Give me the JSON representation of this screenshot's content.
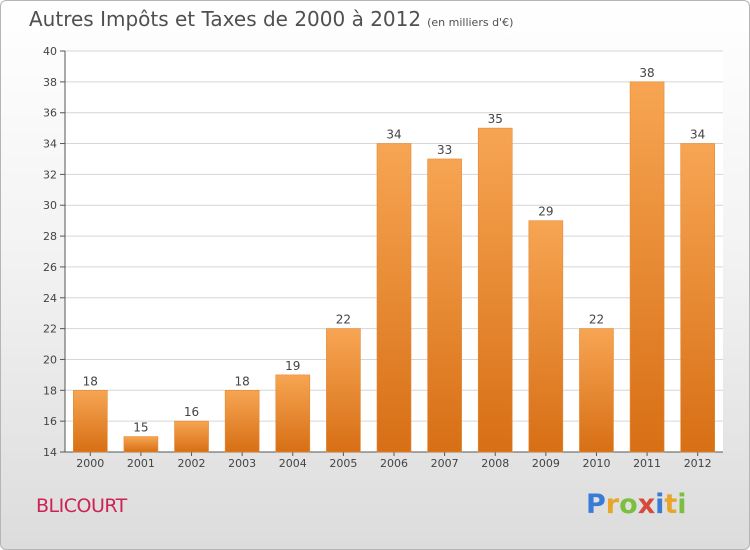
{
  "header": {
    "title": "Autres Impôts et Taxes de 2000 à 2012",
    "subtitle": "(en milliers d'€)"
  },
  "footer": {
    "town": "BLICOURT",
    "brand": "Proxiti"
  },
  "colors": {
    "bar_light": "#f7a553",
    "bar_dark": "#d76f15",
    "town": "#cc2255"
  },
  "chart_data": {
    "type": "bar",
    "title": "Autres Impôts et Taxes de 2000 à 2012",
    "subtitle": "(en milliers d'€)",
    "categories": [
      "2000",
      "2001",
      "2002",
      "2003",
      "2004",
      "2005",
      "2006",
      "2007",
      "2008",
      "2009",
      "2010",
      "2011",
      "2012"
    ],
    "values": [
      18,
      15,
      16,
      18,
      19,
      22,
      34,
      33,
      35,
      29,
      22,
      38,
      34
    ],
    "ylim": [
      14,
      40
    ],
    "yticks": [
      14,
      16,
      18,
      20,
      22,
      24,
      26,
      28,
      30,
      32,
      34,
      36,
      38,
      40
    ],
    "grid": true
  }
}
